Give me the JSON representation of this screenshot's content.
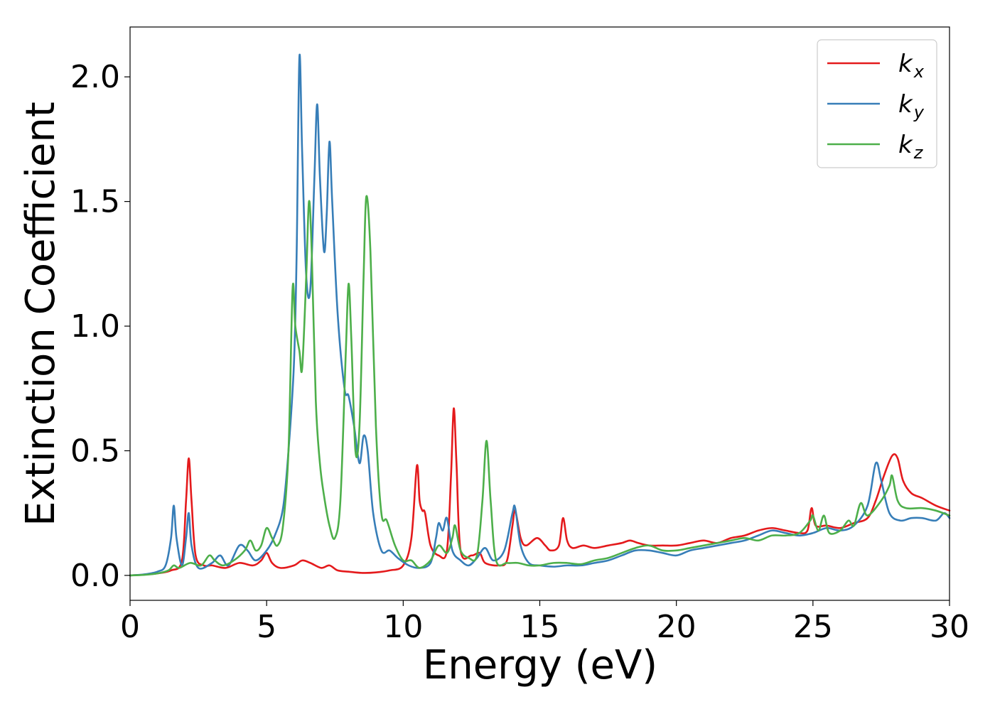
{
  "chart_data": {
    "type": "line",
    "title": "",
    "xlabel": "Energy (eV)",
    "ylabel": "Extinction Coefficient",
    "xlim": [
      0,
      30
    ],
    "ylim": [
      -0.1,
      2.2
    ],
    "xticks": [
      0,
      5,
      10,
      15,
      20,
      25,
      30
    ],
    "xtick_labels": [
      "0",
      "5",
      "10",
      "15",
      "20",
      "25",
      "30"
    ],
    "yticks": [
      0.0,
      0.5,
      1.0,
      1.5,
      2.0
    ],
    "ytick_labels": [
      "0.0",
      "0.5",
      "1.0",
      "1.5",
      "2.0"
    ],
    "grid": false,
    "legend_position": "top-right",
    "series": [
      {
        "name": "k_x",
        "legend_base": "k",
        "legend_sub": "x",
        "color": "#e41a1c",
        "points": [
          [
            0,
            0
          ],
          [
            0.5,
            0.003
          ],
          [
            1.0,
            0.008
          ],
          [
            1.5,
            0.02
          ],
          [
            1.9,
            0.06
          ],
          [
            2.05,
            0.3
          ],
          [
            2.15,
            0.47
          ],
          [
            2.25,
            0.3
          ],
          [
            2.4,
            0.08
          ],
          [
            2.7,
            0.04
          ],
          [
            3.0,
            0.04
          ],
          [
            3.5,
            0.03
          ],
          [
            4.0,
            0.05
          ],
          [
            4.5,
            0.04
          ],
          [
            4.8,
            0.06
          ],
          [
            5.0,
            0.09
          ],
          [
            5.2,
            0.05
          ],
          [
            5.5,
            0.03
          ],
          [
            6.0,
            0.04
          ],
          [
            6.3,
            0.06
          ],
          [
            6.6,
            0.05
          ],
          [
            7.0,
            0.03
          ],
          [
            7.3,
            0.04
          ],
          [
            7.6,
            0.02
          ],
          [
            8.0,
            0.015
          ],
          [
            8.5,
            0.01
          ],
          [
            9.0,
            0.012
          ],
          [
            9.5,
            0.02
          ],
          [
            10.0,
            0.04
          ],
          [
            10.3,
            0.15
          ],
          [
            10.5,
            0.44
          ],
          [
            10.6,
            0.3
          ],
          [
            10.7,
            0.26
          ],
          [
            10.8,
            0.25
          ],
          [
            11.0,
            0.12
          ],
          [
            11.3,
            0.08
          ],
          [
            11.6,
            0.1
          ],
          [
            11.75,
            0.4
          ],
          [
            11.85,
            0.67
          ],
          [
            11.95,
            0.45
          ],
          [
            12.1,
            0.1
          ],
          [
            12.5,
            0.08
          ],
          [
            12.8,
            0.09
          ],
          [
            13.0,
            0.05
          ],
          [
            13.5,
            0.04
          ],
          [
            13.8,
            0.06
          ],
          [
            14.0,
            0.2
          ],
          [
            14.1,
            0.26
          ],
          [
            14.3,
            0.15
          ],
          [
            14.5,
            0.12
          ],
          [
            14.9,
            0.15
          ],
          [
            15.2,
            0.12
          ],
          [
            15.4,
            0.1
          ],
          [
            15.7,
            0.12
          ],
          [
            15.85,
            0.23
          ],
          [
            16.0,
            0.14
          ],
          [
            16.2,
            0.11
          ],
          [
            16.6,
            0.12
          ],
          [
            17.0,
            0.11
          ],
          [
            17.5,
            0.12
          ],
          [
            18.0,
            0.13
          ],
          [
            18.3,
            0.14
          ],
          [
            18.6,
            0.13
          ],
          [
            19.0,
            0.12
          ],
          [
            19.5,
            0.12
          ],
          [
            20.0,
            0.12
          ],
          [
            20.5,
            0.13
          ],
          [
            21.0,
            0.14
          ],
          [
            21.5,
            0.13
          ],
          [
            22.0,
            0.15
          ],
          [
            22.5,
            0.16
          ],
          [
            23.0,
            0.18
          ],
          [
            23.5,
            0.19
          ],
          [
            24.0,
            0.18
          ],
          [
            24.5,
            0.17
          ],
          [
            24.8,
            0.18
          ],
          [
            24.95,
            0.27
          ],
          [
            25.1,
            0.2
          ],
          [
            25.5,
            0.2
          ],
          [
            26.0,
            0.19
          ],
          [
            26.5,
            0.21
          ],
          [
            27.0,
            0.23
          ],
          [
            27.3,
            0.3
          ],
          [
            27.6,
            0.4
          ],
          [
            27.9,
            0.48
          ],
          [
            28.1,
            0.47
          ],
          [
            28.3,
            0.38
          ],
          [
            28.6,
            0.33
          ],
          [
            29.0,
            0.31
          ],
          [
            29.5,
            0.28
          ],
          [
            30.0,
            0.26
          ]
        ]
      },
      {
        "name": "k_y",
        "legend_base": "k",
        "legend_sub": "y",
        "color": "#377eb8",
        "points": [
          [
            0,
            0
          ],
          [
            0.5,
            0.004
          ],
          [
            1.0,
            0.015
          ],
          [
            1.3,
            0.04
          ],
          [
            1.5,
            0.15
          ],
          [
            1.6,
            0.28
          ],
          [
            1.7,
            0.15
          ],
          [
            1.9,
            0.04
          ],
          [
            2.05,
            0.15
          ],
          [
            2.15,
            0.25
          ],
          [
            2.25,
            0.12
          ],
          [
            2.5,
            0.03
          ],
          [
            3.0,
            0.05
          ],
          [
            3.3,
            0.08
          ],
          [
            3.6,
            0.04
          ],
          [
            4.0,
            0.12
          ],
          [
            4.3,
            0.1
          ],
          [
            4.6,
            0.06
          ],
          [
            5.0,
            0.1
          ],
          [
            5.3,
            0.16
          ],
          [
            5.6,
            0.27
          ],
          [
            5.8,
            0.5
          ],
          [
            6.0,
            0.85
          ],
          [
            6.1,
            1.3
          ],
          [
            6.2,
            2.08
          ],
          [
            6.3,
            1.7
          ],
          [
            6.45,
            1.2
          ],
          [
            6.6,
            1.15
          ],
          [
            6.75,
            1.6
          ],
          [
            6.85,
            1.89
          ],
          [
            6.95,
            1.6
          ],
          [
            7.1,
            1.3
          ],
          [
            7.2,
            1.45
          ],
          [
            7.3,
            1.74
          ],
          [
            7.4,
            1.5
          ],
          [
            7.6,
            1.05
          ],
          [
            7.85,
            0.75
          ],
          [
            8.0,
            0.72
          ],
          [
            8.2,
            0.6
          ],
          [
            8.4,
            0.45
          ],
          [
            8.55,
            0.56
          ],
          [
            8.7,
            0.5
          ],
          [
            8.9,
            0.25
          ],
          [
            9.2,
            0.1
          ],
          [
            9.5,
            0.1
          ],
          [
            9.8,
            0.07
          ],
          [
            10.2,
            0.04
          ],
          [
            10.6,
            0.03
          ],
          [
            11.0,
            0.05
          ],
          [
            11.2,
            0.15
          ],
          [
            11.3,
            0.21
          ],
          [
            11.45,
            0.18
          ],
          [
            11.6,
            0.23
          ],
          [
            11.8,
            0.1
          ],
          [
            12.1,
            0.06
          ],
          [
            12.4,
            0.04
          ],
          [
            12.7,
            0.07
          ],
          [
            13.0,
            0.11
          ],
          [
            13.3,
            0.06
          ],
          [
            13.7,
            0.1
          ],
          [
            14.0,
            0.25
          ],
          [
            14.1,
            0.27
          ],
          [
            14.3,
            0.12
          ],
          [
            14.6,
            0.05
          ],
          [
            15.0,
            0.04
          ],
          [
            15.5,
            0.035
          ],
          [
            16.0,
            0.04
          ],
          [
            16.5,
            0.04
          ],
          [
            17.0,
            0.05
          ],
          [
            17.5,
            0.06
          ],
          [
            18.0,
            0.08
          ],
          [
            18.5,
            0.1
          ],
          [
            19.0,
            0.1
          ],
          [
            19.5,
            0.09
          ],
          [
            20.0,
            0.08
          ],
          [
            20.5,
            0.1
          ],
          [
            21.0,
            0.11
          ],
          [
            21.5,
            0.12
          ],
          [
            22.0,
            0.13
          ],
          [
            22.5,
            0.14
          ],
          [
            23.0,
            0.16
          ],
          [
            23.5,
            0.18
          ],
          [
            24.0,
            0.17
          ],
          [
            24.5,
            0.16
          ],
          [
            25.0,
            0.17
          ],
          [
            25.5,
            0.19
          ],
          [
            26.0,
            0.18
          ],
          [
            26.5,
            0.2
          ],
          [
            27.0,
            0.28
          ],
          [
            27.3,
            0.45
          ],
          [
            27.5,
            0.38
          ],
          [
            27.8,
            0.25
          ],
          [
            28.2,
            0.22
          ],
          [
            28.6,
            0.23
          ],
          [
            29.0,
            0.23
          ],
          [
            29.5,
            0.22
          ],
          [
            29.8,
            0.25
          ],
          [
            30.0,
            0.23
          ]
        ]
      },
      {
        "name": "k_z",
        "legend_base": "k",
        "legend_sub": "z",
        "color": "#4daf4a",
        "points": [
          [
            0,
            0
          ],
          [
            0.5,
            0.002
          ],
          [
            1.0,
            0.008
          ],
          [
            1.4,
            0.02
          ],
          [
            1.6,
            0.04
          ],
          [
            1.8,
            0.03
          ],
          [
            2.2,
            0.05
          ],
          [
            2.6,
            0.04
          ],
          [
            2.9,
            0.08
          ],
          [
            3.1,
            0.06
          ],
          [
            3.4,
            0.04
          ],
          [
            3.8,
            0.06
          ],
          [
            4.2,
            0.1
          ],
          [
            4.4,
            0.14
          ],
          [
            4.6,
            0.1
          ],
          [
            4.8,
            0.12
          ],
          [
            5.0,
            0.19
          ],
          [
            5.2,
            0.15
          ],
          [
            5.4,
            0.12
          ],
          [
            5.6,
            0.2
          ],
          [
            5.8,
            0.5
          ],
          [
            5.95,
            1.15
          ],
          [
            6.05,
            1.0
          ],
          [
            6.2,
            0.9
          ],
          [
            6.3,
            0.83
          ],
          [
            6.45,
            1.2
          ],
          [
            6.55,
            1.5
          ],
          [
            6.65,
            1.3
          ],
          [
            6.8,
            0.7
          ],
          [
            6.95,
            0.45
          ],
          [
            7.1,
            0.32
          ],
          [
            7.3,
            0.2
          ],
          [
            7.5,
            0.15
          ],
          [
            7.7,
            0.3
          ],
          [
            7.9,
            0.9
          ],
          [
            8.0,
            1.17
          ],
          [
            8.1,
            0.95
          ],
          [
            8.25,
            0.5
          ],
          [
            8.4,
            0.6
          ],
          [
            8.55,
            1.2
          ],
          [
            8.65,
            1.52
          ],
          [
            8.8,
            1.3
          ],
          [
            9.0,
            0.6
          ],
          [
            9.2,
            0.25
          ],
          [
            9.4,
            0.22
          ],
          [
            9.7,
            0.12
          ],
          [
            10.0,
            0.06
          ],
          [
            10.3,
            0.06
          ],
          [
            10.6,
            0.03
          ],
          [
            11.0,
            0.06
          ],
          [
            11.3,
            0.12
          ],
          [
            11.6,
            0.09
          ],
          [
            11.8,
            0.15
          ],
          [
            11.9,
            0.2
          ],
          [
            12.1,
            0.1
          ],
          [
            12.4,
            0.07
          ],
          [
            12.7,
            0.08
          ],
          [
            12.9,
            0.3
          ],
          [
            13.05,
            0.54
          ],
          [
            13.2,
            0.3
          ],
          [
            13.4,
            0.06
          ],
          [
            13.8,
            0.05
          ],
          [
            14.2,
            0.05
          ],
          [
            14.6,
            0.04
          ],
          [
            15.0,
            0.04
          ],
          [
            15.5,
            0.05
          ],
          [
            16.0,
            0.05
          ],
          [
            16.5,
            0.045
          ],
          [
            17.0,
            0.06
          ],
          [
            17.5,
            0.07
          ],
          [
            18.0,
            0.09
          ],
          [
            18.5,
            0.11
          ],
          [
            19.0,
            0.12
          ],
          [
            19.5,
            0.1
          ],
          [
            20.0,
            0.1
          ],
          [
            20.5,
            0.11
          ],
          [
            21.0,
            0.12
          ],
          [
            21.5,
            0.13
          ],
          [
            22.0,
            0.14
          ],
          [
            22.5,
            0.15
          ],
          [
            23.0,
            0.14
          ],
          [
            23.5,
            0.16
          ],
          [
            24.0,
            0.16
          ],
          [
            24.5,
            0.17
          ],
          [
            24.9,
            0.22
          ],
          [
            25.0,
            0.24
          ],
          [
            25.2,
            0.18
          ],
          [
            25.4,
            0.24
          ],
          [
            25.6,
            0.17
          ],
          [
            26.0,
            0.18
          ],
          [
            26.3,
            0.22
          ],
          [
            26.5,
            0.2
          ],
          [
            26.75,
            0.29
          ],
          [
            27.0,
            0.24
          ],
          [
            27.5,
            0.3
          ],
          [
            27.8,
            0.36
          ],
          [
            27.9,
            0.4
          ],
          [
            28.1,
            0.3
          ],
          [
            28.4,
            0.27
          ],
          [
            29.0,
            0.27
          ],
          [
            29.5,
            0.26
          ],
          [
            30.0,
            0.24
          ]
        ]
      }
    ]
  }
}
